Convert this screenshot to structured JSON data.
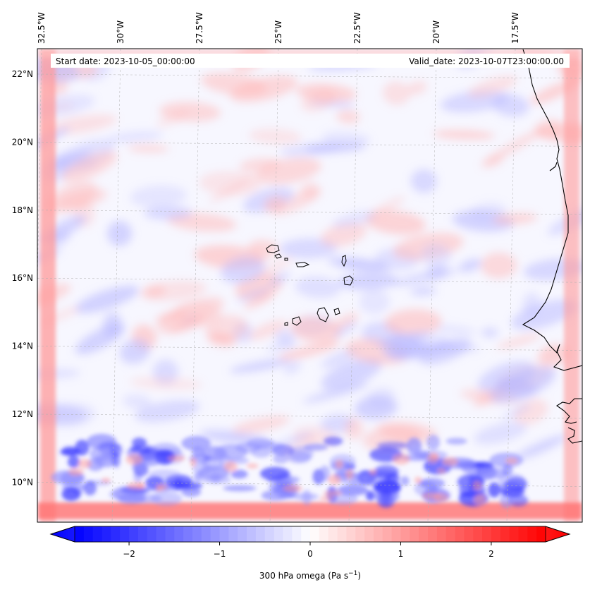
{
  "map": {
    "start_label": "Start date: 2023-10-05_00:00:00",
    "valid_label": "Valid_date: 2023-10-07T23:00:00.00",
    "lon_ticks": [
      {
        "lon": -32.5,
        "label": "32.5°W"
      },
      {
        "lon": -30.0,
        "label": "30°W"
      },
      {
        "lon": -27.5,
        "label": "27.5°W"
      },
      {
        "lon": -25.0,
        "label": "25°W"
      },
      {
        "lon": -22.5,
        "label": "22.5°W"
      },
      {
        "lon": -20.0,
        "label": "20°W"
      },
      {
        "lon": -17.5,
        "label": "17.5°W"
      }
    ],
    "lat_ticks": [
      {
        "lat": 22,
        "label": "22°N"
      },
      {
        "lat": 20,
        "label": "20°N"
      },
      {
        "lat": 18,
        "label": "18°N"
      },
      {
        "lat": 16,
        "label": "16°N"
      },
      {
        "lat": 14,
        "label": "14°N"
      },
      {
        "lat": 12,
        "label": "12°N"
      },
      {
        "lat": 10,
        "label": "10°N"
      }
    ],
    "field_description": "300 hPa omega field: mostly near zero, red boundary frame, blue ascent band near 9.5-11°N"
  },
  "colorbar": {
    "min": -2.6,
    "max": 2.6,
    "ticks": [
      {
        "value": -2,
        "label": "−2"
      },
      {
        "value": -1,
        "label": "−1"
      },
      {
        "value": 0,
        "label": "0"
      },
      {
        "value": 1,
        "label": "1"
      },
      {
        "value": 2,
        "label": "2"
      }
    ],
    "label": "300 hPa omega (Pa s",
    "label_sup": "−1",
    "label_tail": ")",
    "color_low": "#0000ff",
    "color_mid": "#ffffff",
    "color_high": "#ff0000"
  },
  "colors": {
    "coastline": "#000000",
    "gridline": "#b0b0b0",
    "frame_red": "#ff5a5a",
    "ascent_blue": "#3c3cff"
  }
}
